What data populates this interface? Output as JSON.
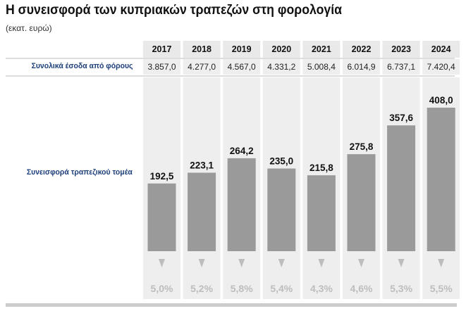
{
  "title": "Η συνεισφορά των κυπριακών τραπεζών στη φορολογία",
  "subtitle": "(εκατ. ευρώ)",
  "row_labels": {
    "totals": "Συνολικά έσοδα από φόρους",
    "bank": "Συνεισφορά τραπεζικού τομέα"
  },
  "colors": {
    "bar": "#9a9a9a",
    "column_bg": "#eeeeee",
    "header_bg": "#e9e9e9",
    "label_text": "#1d3f7a",
    "percent_text": "#bdbdbd",
    "arrow": "#bdbdbd",
    "bottom_rule": "#cccccc"
  },
  "chart_data": {
    "type": "bar",
    "categories": [
      "2017",
      "2018",
      "2019",
      "2020",
      "2021",
      "2022",
      "2023",
      "2024"
    ],
    "totals_display": [
      "3.857,0",
      "4.277,0",
      "4.567,0",
      "4.331,2",
      "5.008,4",
      "6.014,9",
      "6.737,1",
      "7.420,4"
    ],
    "values": [
      192.5,
      223.1,
      264.2,
      235.0,
      215.8,
      275.8,
      357.6,
      408.0
    ],
    "value_labels": [
      "192,5",
      "223,1",
      "264,2",
      "235,0",
      "215,8",
      "275,8",
      "357,6",
      "408,0"
    ],
    "share_labels": [
      "5,0%",
      "5,2%",
      "5,8%",
      "5,4%",
      "4,3%",
      "4,6%",
      "5,3%",
      "5,5%"
    ],
    "ylim": [
      0,
      440
    ],
    "grid": false,
    "legend": "none"
  }
}
